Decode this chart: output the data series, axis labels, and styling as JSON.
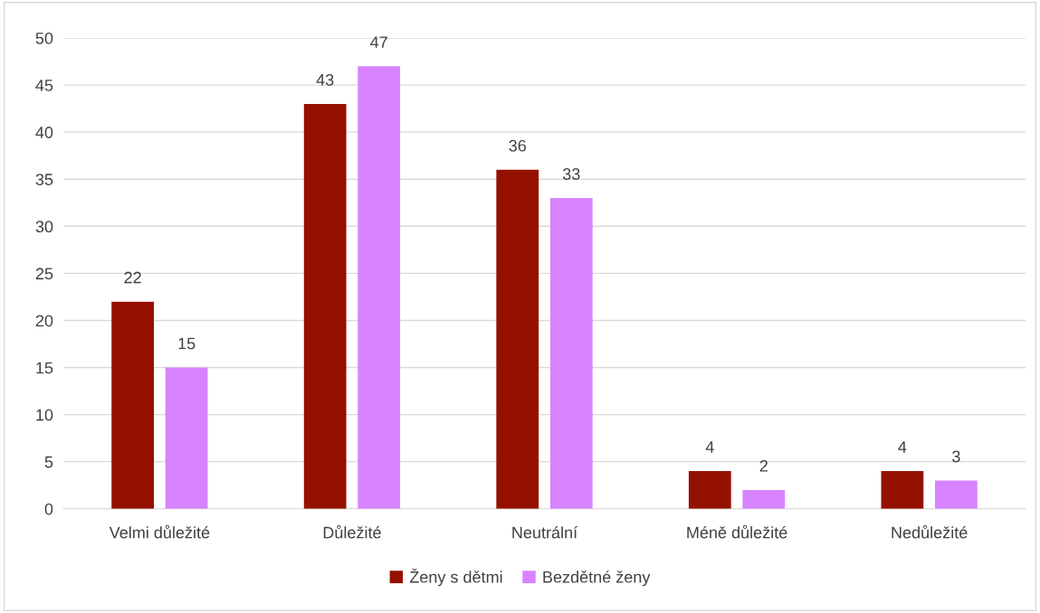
{
  "chart_data": {
    "type": "bar",
    "categories": [
      "Velmi důležité",
      "Důležité",
      "Neutrální",
      "Méně důležité",
      "Nedůležité"
    ],
    "series": [
      {
        "name": "Ženy s dětmi",
        "color": "#941100",
        "values": [
          22,
          43,
          36,
          4,
          4
        ]
      },
      {
        "name": "Bezdětné ženy",
        "color": "#d783ff",
        "values": [
          15,
          47,
          33,
          2,
          3
        ]
      }
    ],
    "ylim": [
      0,
      50
    ],
    "yticks": [
      0,
      5,
      10,
      15,
      20,
      25,
      30,
      35,
      40,
      45,
      50
    ],
    "grid": "y",
    "legend": "bottom",
    "data_labels": true
  }
}
